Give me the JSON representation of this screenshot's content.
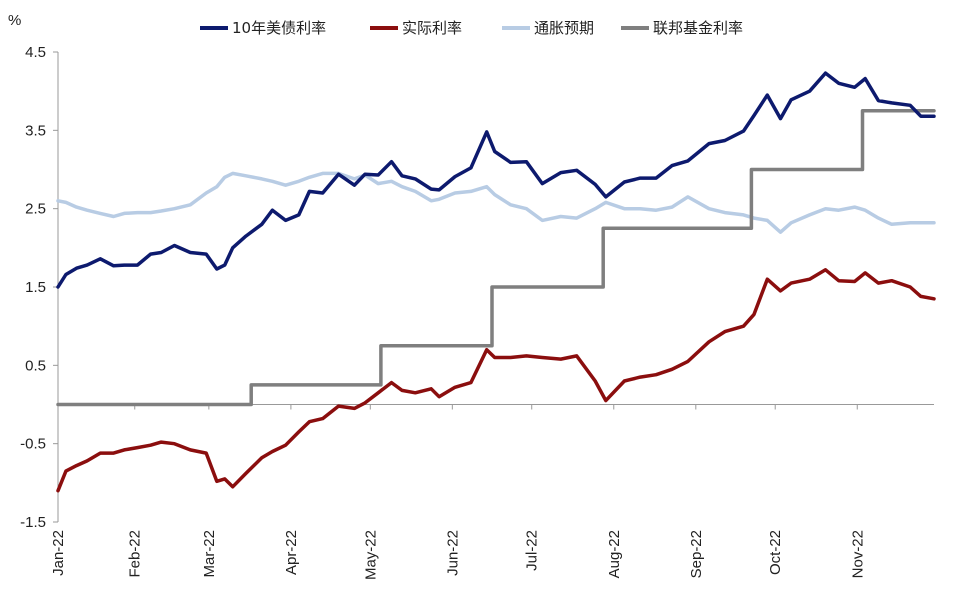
{
  "chart_data": {
    "type": "line",
    "ylabel": "%",
    "ylim": [
      -1.5,
      4.5
    ],
    "yticks": [
      {
        "label": "4.5",
        "value": 4.5,
        "color": "#222222"
      },
      {
        "label": "3.5",
        "value": 3.5,
        "color": "#222222"
      },
      {
        "label": "2.5",
        "value": 2.5,
        "color": "#222222"
      },
      {
        "label": "1.5",
        "value": 1.5,
        "color": "#222222"
      },
      {
        "label": "0.5",
        "value": 0.5,
        "color": "#222222"
      },
      {
        "label": "-0.5",
        "value": -0.5,
        "color": "#d32f2f"
      },
      {
        "label": "-1.5",
        "value": -1.5,
        "color": "#222222"
      }
    ],
    "xlim": [
      "2022-01-03",
      "2022-11-30"
    ],
    "xticks": [
      "Jan-22",
      "Feb-22",
      "Mar-22",
      "Apr-22",
      "May-22",
      "Jun-22",
      "Jul-22",
      "Aug-22",
      "Sep-22",
      "Oct-22",
      "Nov-22"
    ],
    "xtick_dates": [
      "2022-01-03",
      "2022-02-01",
      "2022-03-01",
      "2022-04-01",
      "2022-05-01",
      "2022-06-01",
      "2022-07-01",
      "2022-08-01",
      "2022-09-01",
      "2022-10-01",
      "2022-11-01"
    ],
    "legend_position": "top",
    "grid": false,
    "series": [
      {
        "name": "10年美债利率",
        "color": "#0d1a6e",
        "x": [
          "2022-01-03",
          "2022-01-06",
          "2022-01-10",
          "2022-01-14",
          "2022-01-19",
          "2022-01-24",
          "2022-01-28",
          "2022-02-02",
          "2022-02-07",
          "2022-02-11",
          "2022-02-16",
          "2022-02-22",
          "2022-02-28",
          "2022-03-04",
          "2022-03-07",
          "2022-03-10",
          "2022-03-15",
          "2022-03-21",
          "2022-03-25",
          "2022-03-30",
          "2022-04-04",
          "2022-04-08",
          "2022-04-13",
          "2022-04-19",
          "2022-04-25",
          "2022-04-29",
          "2022-05-04",
          "2022-05-09",
          "2022-05-13",
          "2022-05-18",
          "2022-05-24",
          "2022-05-27",
          "2022-06-02",
          "2022-06-08",
          "2022-06-14",
          "2022-06-17",
          "2022-06-23",
          "2022-06-29",
          "2022-07-05",
          "2022-07-12",
          "2022-07-18",
          "2022-07-25",
          "2022-07-29",
          "2022-08-05",
          "2022-08-11",
          "2022-08-17",
          "2022-08-23",
          "2022-08-29",
          "2022-09-06",
          "2022-09-12",
          "2022-09-19",
          "2022-09-23",
          "2022-09-28",
          "2022-10-03",
          "2022-10-07",
          "2022-10-14",
          "2022-10-20",
          "2022-10-25",
          "2022-10-31",
          "2022-11-04",
          "2022-11-09",
          "2022-11-14",
          "2022-11-21",
          "2022-11-25",
          "2022-11-30"
        ],
        "values": [
          1.5,
          1.66,
          1.74,
          1.78,
          1.86,
          1.77,
          1.78,
          1.78,
          1.92,
          1.94,
          2.03,
          1.94,
          1.92,
          1.73,
          1.78,
          2.0,
          2.15,
          2.3,
          2.48,
          2.35,
          2.42,
          2.72,
          2.7,
          2.94,
          2.8,
          2.94,
          2.93,
          3.1,
          2.92,
          2.88,
          2.75,
          2.74,
          2.91,
          3.02,
          3.48,
          3.23,
          3.09,
          3.1,
          2.82,
          2.96,
          2.99,
          2.81,
          2.65,
          2.84,
          2.89,
          2.89,
          3.05,
          3.11,
          3.33,
          3.37,
          3.49,
          3.69,
          3.95,
          3.65,
          3.89,
          4.0,
          4.23,
          4.1,
          4.05,
          4.16,
          3.88,
          3.85,
          3.82,
          3.68,
          3.68
        ]
      },
      {
        "name": "实际利率",
        "color": "#8b0e0e",
        "x": [
          "2022-01-03",
          "2022-01-06",
          "2022-01-10",
          "2022-01-14",
          "2022-01-19",
          "2022-01-24",
          "2022-01-28",
          "2022-02-02",
          "2022-02-07",
          "2022-02-11",
          "2022-02-16",
          "2022-02-22",
          "2022-02-28",
          "2022-03-04",
          "2022-03-07",
          "2022-03-10",
          "2022-03-15",
          "2022-03-21",
          "2022-03-25",
          "2022-03-30",
          "2022-04-04",
          "2022-04-08",
          "2022-04-13",
          "2022-04-19",
          "2022-04-25",
          "2022-04-29",
          "2022-05-04",
          "2022-05-09",
          "2022-05-13",
          "2022-05-18",
          "2022-05-24",
          "2022-05-27",
          "2022-06-02",
          "2022-06-08",
          "2022-06-14",
          "2022-06-17",
          "2022-06-23",
          "2022-06-29",
          "2022-07-05",
          "2022-07-12",
          "2022-07-18",
          "2022-07-25",
          "2022-07-29",
          "2022-08-05",
          "2022-08-11",
          "2022-08-17",
          "2022-08-23",
          "2022-08-29",
          "2022-09-06",
          "2022-09-12",
          "2022-09-19",
          "2022-09-23",
          "2022-09-28",
          "2022-10-03",
          "2022-10-07",
          "2022-10-14",
          "2022-10-20",
          "2022-10-25",
          "2022-10-31",
          "2022-11-04",
          "2022-11-09",
          "2022-11-14",
          "2022-11-21",
          "2022-11-25",
          "2022-11-30"
        ],
        "values": [
          -1.1,
          -0.85,
          -0.78,
          -0.72,
          -0.62,
          -0.62,
          -0.58,
          -0.55,
          -0.52,
          -0.48,
          -0.5,
          -0.58,
          -0.62,
          -0.98,
          -0.95,
          -1.05,
          -0.88,
          -0.68,
          -0.6,
          -0.52,
          -0.35,
          -0.22,
          -0.18,
          -0.02,
          -0.05,
          0.02,
          0.15,
          0.28,
          0.18,
          0.15,
          0.2,
          0.1,
          0.22,
          0.28,
          0.7,
          0.6,
          0.6,
          0.62,
          0.6,
          0.58,
          0.62,
          0.3,
          0.05,
          0.3,
          0.35,
          0.38,
          0.45,
          0.55,
          0.8,
          0.93,
          1.0,
          1.15,
          1.6,
          1.45,
          1.55,
          1.6,
          1.72,
          1.58,
          1.57,
          1.68,
          1.55,
          1.58,
          1.5,
          1.38,
          1.35
        ]
      },
      {
        "name": "通胀预期",
        "color": "#b8cce4",
        "x": [
          "2022-01-03",
          "2022-01-06",
          "2022-01-10",
          "2022-01-14",
          "2022-01-19",
          "2022-01-24",
          "2022-01-28",
          "2022-02-02",
          "2022-02-07",
          "2022-02-11",
          "2022-02-16",
          "2022-02-22",
          "2022-02-28",
          "2022-03-04",
          "2022-03-07",
          "2022-03-10",
          "2022-03-15",
          "2022-03-21",
          "2022-03-25",
          "2022-03-30",
          "2022-04-04",
          "2022-04-08",
          "2022-04-13",
          "2022-04-19",
          "2022-04-25",
          "2022-04-29",
          "2022-05-04",
          "2022-05-09",
          "2022-05-13",
          "2022-05-18",
          "2022-05-24",
          "2022-05-27",
          "2022-06-02",
          "2022-06-08",
          "2022-06-14",
          "2022-06-17",
          "2022-06-23",
          "2022-06-29",
          "2022-07-05",
          "2022-07-12",
          "2022-07-18",
          "2022-07-25",
          "2022-07-29",
          "2022-08-05",
          "2022-08-11",
          "2022-08-17",
          "2022-08-23",
          "2022-08-29",
          "2022-09-06",
          "2022-09-12",
          "2022-09-19",
          "2022-09-23",
          "2022-09-28",
          "2022-10-03",
          "2022-10-07",
          "2022-10-14",
          "2022-10-20",
          "2022-10-25",
          "2022-10-31",
          "2022-11-04",
          "2022-11-09",
          "2022-11-14",
          "2022-11-21",
          "2022-11-25",
          "2022-11-30"
        ],
        "values": [
          2.6,
          2.58,
          2.52,
          2.48,
          2.44,
          2.4,
          2.44,
          2.45,
          2.45,
          2.47,
          2.5,
          2.55,
          2.7,
          2.78,
          2.9,
          2.95,
          2.92,
          2.88,
          2.85,
          2.8,
          2.85,
          2.9,
          2.95,
          2.95,
          2.88,
          2.93,
          2.82,
          2.85,
          2.78,
          2.72,
          2.6,
          2.62,
          2.7,
          2.72,
          2.78,
          2.68,
          2.55,
          2.5,
          2.35,
          2.4,
          2.38,
          2.5,
          2.58,
          2.5,
          2.5,
          2.48,
          2.52,
          2.65,
          2.5,
          2.45,
          2.42,
          2.38,
          2.35,
          2.2,
          2.32,
          2.42,
          2.5,
          2.48,
          2.52,
          2.48,
          2.38,
          2.3,
          2.32,
          2.32,
          2.32
        ]
      },
      {
        "name": "联邦基金利率",
        "color": "#7f7f7f",
        "step": true,
        "x": [
          "2022-01-03",
          "2022-03-17",
          "2022-05-05",
          "2022-06-16",
          "2022-07-28",
          "2022-09-22",
          "2022-11-03",
          "2022-11-30"
        ],
        "values": [
          0.0,
          0.25,
          0.75,
          1.5,
          2.25,
          3.0,
          3.75,
          3.75
        ]
      }
    ]
  }
}
